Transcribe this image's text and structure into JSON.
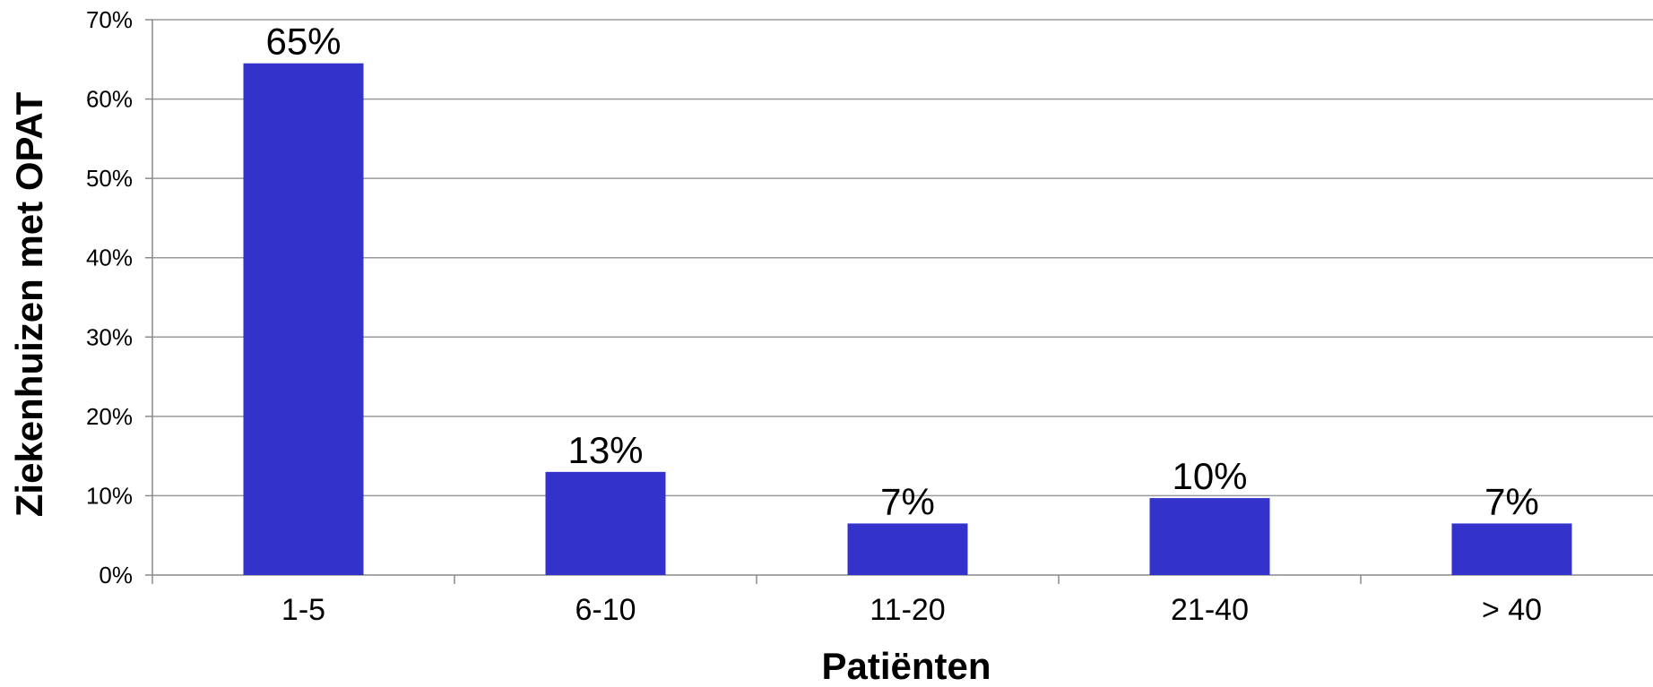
{
  "chart_data": {
    "type": "bar",
    "title": "",
    "xlabel": "Patiënten",
    "ylabel": "Ziekenhuizen met OPAT",
    "categories": [
      "1-5",
      "6-10",
      "11-20",
      "21-40",
      "> 40"
    ],
    "values": [
      64.5,
      13.0,
      6.5,
      9.7,
      6.5
    ],
    "data_labels": [
      "65%",
      "13%",
      "7%",
      "10%",
      "7%"
    ],
    "ylim": [
      0,
      70
    ],
    "yticks": [
      0,
      10,
      20,
      30,
      40,
      50,
      60,
      70
    ],
    "ytick_labels": [
      "0%",
      "10%",
      "20%",
      "30%",
      "40%",
      "50%",
      "60%",
      "70%"
    ],
    "grid": true,
    "legend": "none",
    "bar_color": "#3333CC"
  }
}
